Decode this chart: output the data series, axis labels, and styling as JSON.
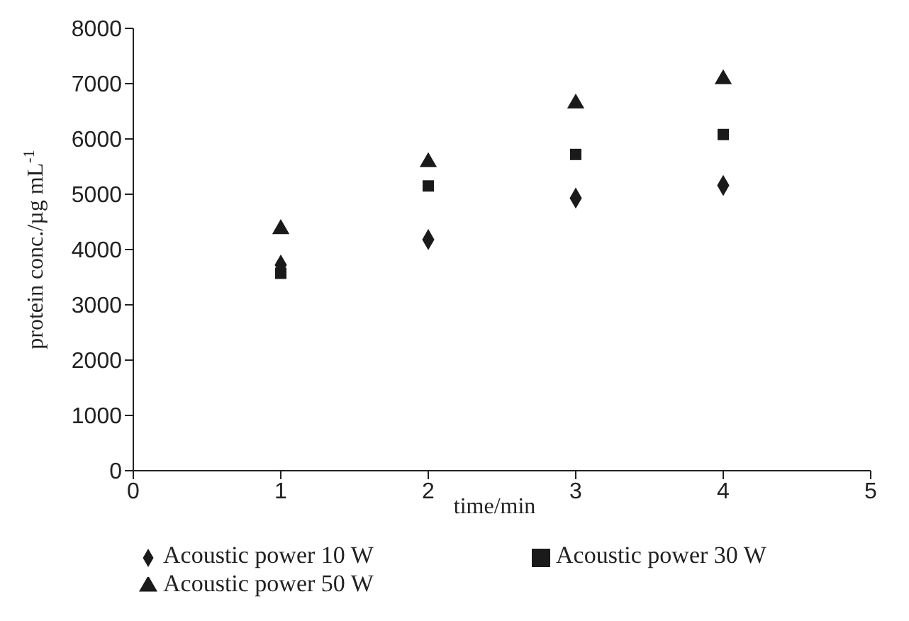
{
  "chart_data": {
    "type": "scatter",
    "xlabel": "time/min",
    "ylabel": "protein conc./µg mL$^{-1}$",
    "x": [
      1,
      2,
      3,
      4
    ],
    "series": [
      {
        "name": "Acoustic power 10 W",
        "color": "#1a1a1a",
        "marker": "diamond",
        "values": [
          3720,
          4180,
          4930,
          5160
        ]
      },
      {
        "name": "Acoustic power 30 W",
        "color": "#1a1a1a",
        "marker": "square",
        "values": [
          3570,
          5150,
          5720,
          6080
        ]
      },
      {
        "name": "Acoustic power 50 W",
        "color": "#1a1a1a",
        "marker": "triangle",
        "values": [
          4370,
          5580,
          6640,
          7080
        ]
      }
    ],
    "xlim": [
      0,
      5
    ],
    "xticks": [
      0,
      1,
      2,
      3,
      4,
      5
    ],
    "ylim": [
      0,
      8000
    ],
    "yticks": [
      0,
      1000,
      2000,
      3000,
      4000,
      5000,
      6000,
      7000,
      8000
    ],
    "grid": false,
    "legend": "bottom"
  }
}
